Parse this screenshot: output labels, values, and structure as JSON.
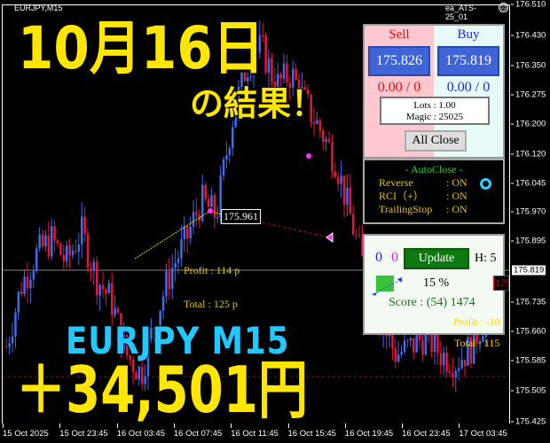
{
  "window": {
    "symbol": "EURJPY,M15",
    "ea_name": "ea_ATS-25_01",
    "status_icon": "sad-face-icon"
  },
  "price_axis": {
    "ticks": [
      "176.510",
      "176.430",
      "176.350",
      "176.275",
      "176.200",
      "176.120",
      "176.045",
      "175.970",
      "175.895",
      "175.819",
      "175.735",
      "175.660",
      "175.585",
      "175.505",
      "175.425"
    ],
    "current": "175.819"
  },
  "time_axis": {
    "ticks": [
      "15 Oct 2025",
      "15 Oct 23:45",
      "16 Oct 03:45",
      "16 Oct 07:45",
      "16 Oct 11:45",
      "16 Oct 15:45",
      "16 Oct 19:45",
      "16 Oct 23:45",
      "17 Oct 03:45"
    ]
  },
  "overlay": {
    "date": "10月16日",
    "result": "の結果！",
    "pair": "EURJPY  M15",
    "amount": "＋34,501円"
  },
  "chart_annotations": {
    "entry_price": "175.961",
    "profit": "Profit : 114 p",
    "total": "Total : 125 p",
    "profit2": "Profit : -10",
    "total2": "Total : 115",
    "order_tag": "175"
  },
  "trade_panel": {
    "sell_label": "Sell",
    "buy_label": "Buy",
    "sell_price": "175.826",
    "buy_price": "175.819",
    "sell_pl": "0.00 / 0",
    "buy_pl": "0.00 / 0",
    "lots": "Lots   : 1.00",
    "magic": "Magic : 25025",
    "all_close": "All Close"
  },
  "autoclose_panel": {
    "title": "- AutoClose -",
    "rows": [
      {
        "label": "Reverse",
        "value": ": ON"
      },
      {
        "label": "RCI（+）",
        "value": ": ON"
      },
      {
        "label": "TrailingStop",
        "value": ": ON"
      }
    ]
  },
  "score_panel": {
    "count_blue": "0",
    "count_magenta": "0",
    "update": "Update",
    "h": "H: 5",
    "percent": "15 %",
    "score": "Score : (54) 1474"
  },
  "chart_data": {
    "type": "candlestick",
    "price_range": [
      175.425,
      176.51
    ],
    "bull_color": "#3c6cf0",
    "bear_color": "#e8143c",
    "close_path": [
      175.62,
      175.78,
      175.86,
      175.9,
      175.84,
      175.92,
      175.8,
      175.74,
      175.6,
      175.55,
      175.7,
      175.82,
      175.9,
      176.0,
      175.96,
      176.2,
      176.35,
      176.4,
      176.3,
      176.33,
      176.25,
      176.18,
      176.1,
      175.95,
      175.8,
      175.68,
      175.6,
      175.62,
      175.65,
      175.6,
      175.58,
      175.62,
      175.7,
      175.82
    ]
  }
}
